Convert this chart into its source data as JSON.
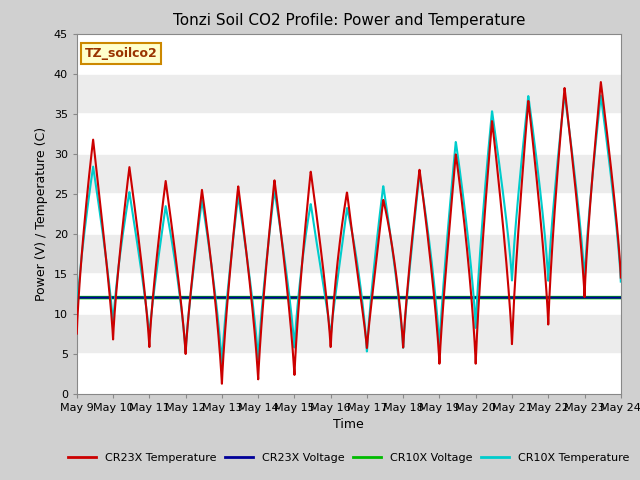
{
  "title": "Tonzi Soil CO2 Profile: Power and Temperature",
  "xlabel": "Time",
  "ylabel": "Power (V) / Temperature (C)",
  "ylim": [
    0,
    45
  ],
  "annotation": "TZ_soilco2",
  "cr23x_temp_color": "#cc0000",
  "cr23x_volt_color": "#000099",
  "cr10x_volt_color": "#00bb00",
  "cr10x_temp_color": "#00cccc",
  "green_line_value": 12.0,
  "x_tick_labels": [
    "May 9",
    "May 10",
    "May 11",
    "May 12",
    "May 13",
    "May 14",
    "May 15",
    "May 16",
    "May 17",
    "May 18",
    "May 19",
    "May 20",
    "May 21",
    "May 22",
    "May 23",
    "May 24"
  ],
  "num_days": 15,
  "legend_entries": [
    "CR23X Temperature",
    "CR23X Voltage",
    "CR10X Voltage",
    "CR10X Temperature"
  ],
  "cr23x_peaks": [
    34.0,
    29.0,
    27.5,
    25.5,
    25.5,
    26.5,
    27.0,
    28.8,
    20.8,
    28.5,
    27.5,
    33.0,
    35.5,
    38.0,
    38.5,
    39.5,
    40.5
  ],
  "cr23x_troughs": [
    7.5,
    6.7,
    5.7,
    4.8,
    1.0,
    1.5,
    2.0,
    5.5,
    5.5,
    5.5,
    3.5,
    3.5,
    6.0,
    8.5,
    12.0,
    14.5
  ],
  "cr10x_peaks": [
    29.5,
    27.0,
    23.0,
    24.0,
    24.5,
    25.0,
    26.0,
    21.0,
    26.0,
    26.0,
    29.5,
    34.0,
    37.0,
    37.5,
    37.5,
    37.0
  ],
  "cr10x_troughs": [
    10.0,
    8.5,
    7.0,
    5.0,
    3.5,
    4.0,
    5.5,
    7.0,
    5.0,
    5.5,
    5.5,
    8.0,
    14.0,
    14.0,
    14.0,
    14.0
  ],
  "band_colors": [
    "#ffffff",
    "#e8e8e8"
  ],
  "fig_bg": "#c8c8c8",
  "plot_bg": "#ffffff"
}
